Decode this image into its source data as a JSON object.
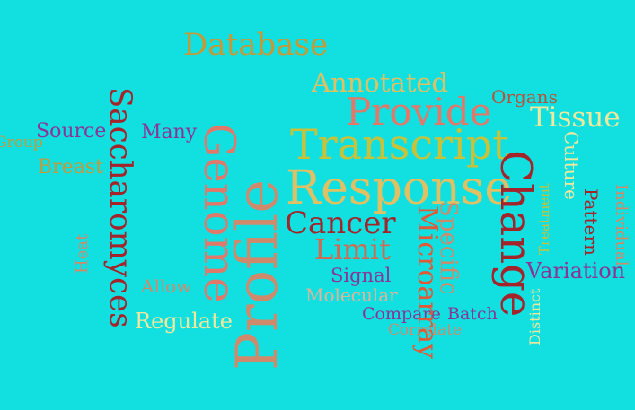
{
  "background": "#12e0e0",
  "words": [
    {
      "text": "Database",
      "color": "#c39a3a"
    },
    {
      "text": "Annotated",
      "color": "#e0c063"
    },
    {
      "text": "Organs",
      "color": "#b2553e"
    },
    {
      "text": "Provide",
      "color": "#e2786a"
    },
    {
      "text": "Tissue",
      "color": "#f0e89c"
    },
    {
      "text": "Transcript",
      "color": "#c8c23a"
    },
    {
      "text": "Response",
      "color": "#e0c063"
    },
    {
      "text": "Source",
      "color": "#8a3596"
    },
    {
      "text": "Many",
      "color": "#8a3596"
    },
    {
      "text": "Group",
      "color": "#c39a3a"
    },
    {
      "text": "Breast",
      "color": "#c39a3a"
    },
    {
      "text": "Cancer",
      "color": "#a3242b"
    },
    {
      "text": "Limit",
      "color": "#d06a52"
    },
    {
      "text": "Signal",
      "color": "#8a3596"
    },
    {
      "text": "Molecular",
      "color": "#e0b49a"
    },
    {
      "text": "Allow",
      "color": "#cf8a6c"
    },
    {
      "text": "Regulate",
      "color": "#f0e89c"
    },
    {
      "text": "Compare",
      "color": "#8a3596"
    },
    {
      "text": "Batch",
      "color": "#8a3596"
    },
    {
      "text": "Correlate",
      "color": "#cf8a6c"
    },
    {
      "text": "Variation",
      "color": "#8a3596"
    },
    {
      "text": "Saccharomyces",
      "color": "#a3242b"
    },
    {
      "text": "Genome",
      "color": "#e2786a"
    },
    {
      "text": "Microarray",
      "color": "#e05a38"
    },
    {
      "text": "Specific",
      "color": "#cf8a6c"
    },
    {
      "text": "Change",
      "color": "#a3242b"
    },
    {
      "text": "Culture",
      "color": "#f0e89c"
    },
    {
      "text": "Pattern",
      "color": "#a3242b"
    },
    {
      "text": "Individual",
      "color": "#cf8a6c"
    },
    {
      "text": "Profile",
      "color": "#cf8a6c"
    },
    {
      "text": "Heat",
      "color": "#cf8a6c"
    },
    {
      "text": "Treatment",
      "color": "#c8c23a"
    },
    {
      "text": "Distinct",
      "color": "#f0e89c"
    }
  ]
}
